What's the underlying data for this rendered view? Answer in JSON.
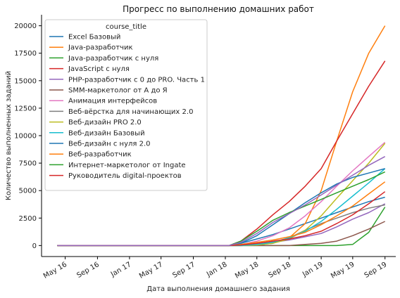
{
  "chart_data": {
    "type": "line",
    "title": "Прогресс по выполнению домашних работ",
    "xlabel": "Дата выполнения домашнего задания",
    "ylabel": "Количество выполненных заданий",
    "x_tick_labels": [
      "May 16",
      "Sep 16",
      "Jan 17",
      "May 17",
      "Sep 17",
      "Jan 18",
      "May 18",
      "Sep 18",
      "Jan 19",
      "May 19",
      "Sep 19"
    ],
    "x_tick_dates": [
      "2016-05-01",
      "2016-09-01",
      "2017-01-01",
      "2017-05-01",
      "2017-09-01",
      "2018-01-01",
      "2018-05-01",
      "2018-09-01",
      "2019-01-01",
      "2019-05-01",
      "2019-09-01"
    ],
    "xlim": [
      "2016-02-01",
      "2019-10-12"
    ],
    "y_ticks": [
      0,
      2500,
      5000,
      7500,
      10000,
      12500,
      15000,
      17500,
      20000
    ],
    "ylim": [
      -1000,
      21000
    ],
    "grid": false,
    "legend_title": "course_title",
    "legend_position": "upper-left",
    "x": [
      "2016-04-01",
      "2018-01-15",
      "2018-03-01",
      "2018-05-01",
      "2018-07-01",
      "2018-09-01",
      "2018-11-01",
      "2019-01-01",
      "2019-03-01",
      "2019-05-01",
      "2019-07-01",
      "2019-09-01"
    ],
    "series": [
      {
        "name": "Excel Базовый",
        "color": "#1f77b4",
        "values": [
          0,
          0,
          200,
          600,
          1000,
          1500,
          2000,
          2500,
          3000,
          3500,
          4000,
          4400
        ]
      },
      {
        "name": "Java-разработчик",
        "color": "#ff7f0e",
        "values": [
          0,
          0,
          50,
          150,
          300,
          700,
          2000,
          5000,
          9500,
          14000,
          17500,
          20000
        ]
      },
      {
        "name": "Java-разработчик с нуля",
        "color": "#2ca02c",
        "values": [
          0,
          0,
          0,
          0,
          0,
          0,
          0,
          0,
          0,
          100,
          1200,
          3500
        ]
      },
      {
        "name": "JavaScript с нуля",
        "color": "#d62728",
        "values": [
          0,
          0,
          400,
          1500,
          2800,
          4000,
          5400,
          7000,
          9500,
          12000,
          14500,
          16800
        ]
      },
      {
        "name": "PHP-разработчик с 0 до PRO. Часть 1",
        "color": "#9467bd",
        "values": [
          0,
          0,
          50,
          150,
          300,
          500,
          800,
          1100,
          1700,
          2400,
          3000,
          3800
        ]
      },
      {
        "name": "SMM-маркетолог от А до Я",
        "color": "#8c564b",
        "values": [
          0,
          0,
          0,
          0,
          0,
          0,
          100,
          200,
          400,
          900,
          1500,
          2200
        ]
      },
      {
        "name": "Анимация интерфейсов",
        "color": "#e377c2",
        "values": [
          0,
          0,
          100,
          400,
          900,
          1600,
          2700,
          4000,
          5400,
          6800,
          8100,
          9400
        ]
      },
      {
        "name": "Веб-вёрстка для начинающих 2.0",
        "color": "#7f7f7f",
        "values": [
          0,
          0,
          0,
          50,
          200,
          700,
          1400,
          2000,
          2500,
          3000,
          3400,
          3700
        ]
      },
      {
        "name": "Веб-дизайн PRO 2.0",
        "color": "#bcbd22",
        "values": [
          0,
          0,
          0,
          50,
          200,
          600,
          1400,
          2700,
          4300,
          5900,
          7500,
          9300
        ]
      },
      {
        "name": "Веб-дизайн Базовый",
        "color": "#17becf",
        "values": [
          0,
          0,
          0,
          100,
          300,
          700,
          1300,
          2200,
          3300,
          4500,
          5700,
          7000
        ]
      },
      {
        "name": "Веб-дизайн с нуля 2.0",
        "color": "#1f77b4",
        "values": [
          0,
          0,
          200,
          900,
          1900,
          2900,
          3900,
          4800,
          5600,
          6200,
          6600,
          7000
        ]
      },
      {
        "name": "Веб-разработчик",
        "color": "#ff7f0e",
        "values": [
          0,
          0,
          100,
          300,
          500,
          800,
          1200,
          1900,
          2700,
          3600,
          4700,
          5800
        ]
      },
      {
        "name": "Интернет-маркетолог от Ingate",
        "color": "#2ca02c",
        "values": [
          0,
          0,
          400,
          1300,
          2300,
          3000,
          3600,
          4200,
          4800,
          5400,
          6000,
          6700
        ]
      },
      {
        "name": "Руководитель digital-проектов",
        "color": "#d62728",
        "values": [
          0,
          0,
          50,
          200,
          400,
          600,
          900,
          1300,
          2000,
          2800,
          3800,
          4900
        ]
      },
      {
        "name": "",
        "color": "#9467bd",
        "values": [
          0,
          0,
          300,
          1100,
          2100,
          2900,
          3700,
          4600,
          5500,
          6400,
          7300,
          8100
        ]
      }
    ]
  }
}
